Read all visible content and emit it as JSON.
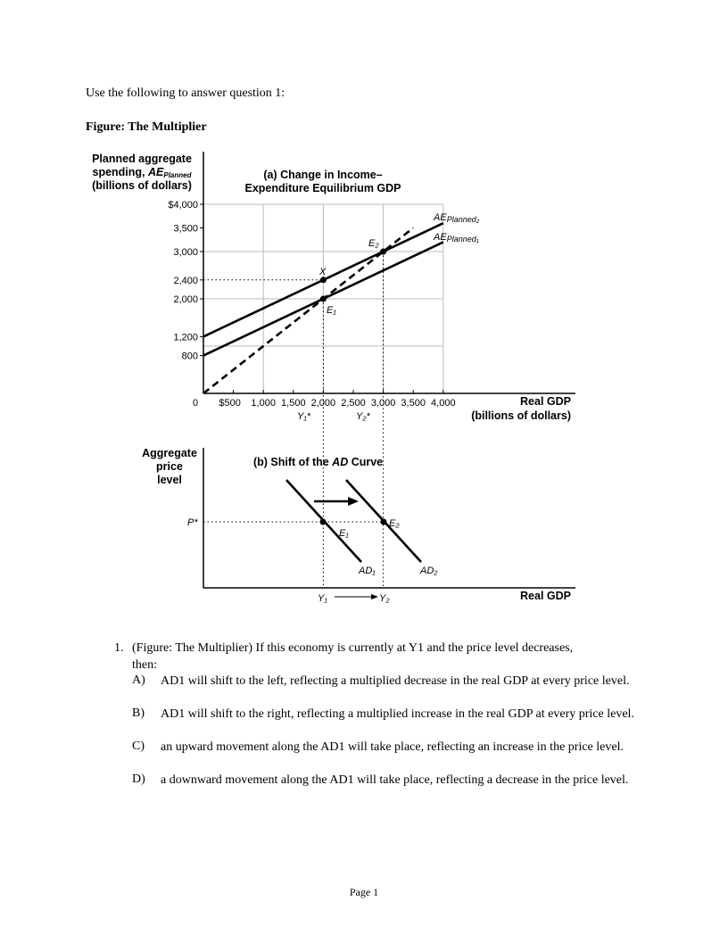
{
  "intro": "Use the following to answer question 1:",
  "figure_title": "Figure: The Multiplier",
  "chart_data": [
    {
      "type": "line",
      "title": "(a) Change in Income–Expenditure Equilibrium GDP",
      "ylabel_lines": [
        "Planned aggregate",
        "spending, AE",
        "(billions of dollars)"
      ],
      "ylabel_sub": "Planned",
      "xlabel_lines": [
        "Real GDP",
        "(billions of dollars)"
      ],
      "xticks": [
        "$500",
        "1,000",
        "1,500",
        "2,000",
        "2,500",
        "3,000",
        "3,500",
        "4,000"
      ],
      "yticks": [
        "$4,000",
        "3,500",
        "3,000",
        "2,400",
        "2,000",
        "1,200",
        "800"
      ],
      "origin_label": "0",
      "xlim": [
        0,
        4000
      ],
      "ylim": [
        0,
        4000
      ],
      "grid": true,
      "series": [
        {
          "name": "AE Planned2",
          "x": [
            0,
            4000
          ],
          "y": [
            1200,
            3600
          ],
          "style": "solid"
        },
        {
          "name": "AE Planned1",
          "x": [
            0,
            4000
          ],
          "y": [
            800,
            3200
          ],
          "style": "solid"
        },
        {
          "x": [
            0,
            3500
          ],
          "y": [
            0,
            3500
          ],
          "style": "dashed"
        }
      ],
      "points": [
        {
          "label": "X",
          "x": 2000,
          "y": 2400
        },
        {
          "label": "E1",
          "x": 2000,
          "y": 2000
        },
        {
          "label": "E2",
          "x": 3000,
          "y": 3000
        }
      ],
      "x_markers": [
        {
          "label": "Y1*",
          "x": 2000
        },
        {
          "label": "Y2*",
          "x": 3000
        }
      ]
    },
    {
      "type": "line",
      "title": "(b) Shift of the AD Curve",
      "ylabel_lines": [
        "Aggregate",
        "price",
        "level"
      ],
      "xlabel": "Real GDP",
      "series": [
        {
          "name": "AD1"
        },
        {
          "name": "AD2"
        }
      ],
      "points": [
        {
          "label": "E1"
        },
        {
          "label": "E2"
        }
      ],
      "price_label": "P*",
      "x_markers": [
        "Y1",
        "Y2"
      ]
    }
  ],
  "question": {
    "number": "1.",
    "text_lines": [
      "(Figure: The Multiplier) If this economy is currently at Y1 and the price level decreases,",
      "then:"
    ],
    "options": [
      {
        "letter": "A)",
        "text": "AD1 will shift to the left, reflecting a multiplied decrease in the real GDP at every price level."
      },
      {
        "letter": "B)",
        "text": "AD1 will shift to the right, reflecting a multiplied increase in the real GDP at every price level."
      },
      {
        "letter": "C)",
        "text": "an upward movement along the AD1 will take place, reflecting an increase in the price level."
      },
      {
        "letter": "D)",
        "text": "a downward movement along the AD1 will take place, reflecting a decrease in the price level."
      }
    ]
  },
  "footer": "Page 1"
}
